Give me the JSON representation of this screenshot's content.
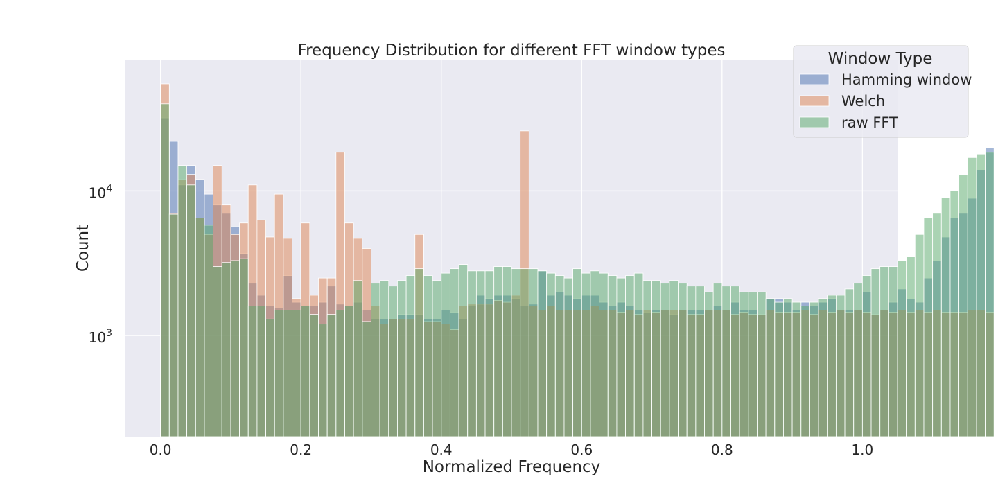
{
  "chart_data": {
    "type": "bar",
    "title": "Frequency Distribution for different FFT window types",
    "xlabel": "Normalized Frequency",
    "ylabel": "Count",
    "xlim": [
      -0.05,
      1.05
    ],
    "ylim": [
      200,
      80000
    ],
    "yscale": "log",
    "grid": true,
    "x_ticks": [
      "0.0",
      "0.2",
      "0.4",
      "0.6",
      "0.8",
      "1.0"
    ],
    "y_ticks": [
      {
        "base": "10",
        "exp": "3"
      },
      {
        "base": "10",
        "exp": "4"
      }
    ],
    "legend": {
      "title": "Window Type",
      "position": "top-right"
    },
    "bin_width": 0.0125,
    "x_start": 0.0,
    "series": [
      {
        "name": "Hamming window",
        "color": "#4c72b0",
        "values": [
          32000,
          22000,
          11000,
          15000,
          12000,
          9500,
          8000,
          7000,
          5700,
          3700,
          2300,
          1900,
          1600,
          1550,
          2600,
          1700,
          1600,
          1600,
          1700,
          2200,
          1650,
          1600,
          1700,
          1500,
          1300,
          1300,
          1300,
          1400,
          1400,
          1400,
          1300,
          1300,
          1500,
          1450,
          1300,
          1600,
          1900,
          1800,
          1900,
          1900,
          1800,
          1600,
          1650,
          2800,
          1900,
          2000,
          1900,
          1800,
          1900,
          1900,
          1700,
          1600,
          1700,
          1600,
          1500,
          1450,
          1500,
          1500,
          1400,
          1500,
          1500,
          1500,
          1500,
          1600,
          1500,
          1700,
          1500,
          1500,
          1400,
          1800,
          1800,
          1700,
          1500,
          1700,
          1600,
          1700,
          1800,
          1500,
          1500,
          1500,
          2000,
          1400,
          1500,
          1700,
          2100,
          1800,
          1700,
          2500,
          3300,
          4800,
          6500,
          7000,
          8900,
          14000,
          20000
        ]
      },
      {
        "name": "Welch",
        "color": "#dd8452",
        "values": [
          55000,
          7000,
          12000,
          13000,
          6500,
          5000,
          15000,
          8000,
          5000,
          6000,
          11000,
          6300,
          4800,
          9500,
          4700,
          1800,
          6000,
          1900,
          2500,
          2500,
          18500,
          6000,
          4700,
          4000,
          1600,
          1200,
          1300,
          1300,
          1300,
          5000,
          1250,
          1250,
          1200,
          1100,
          1600,
          1650,
          1650,
          1650,
          1750,
          1700,
          1900,
          26000,
          1600,
          1500,
          1600,
          1500,
          1500,
          1500,
          1500,
          1600,
          1500,
          1500,
          1450,
          1500,
          1400,
          1500,
          1450,
          1500,
          1500,
          1500,
          1400,
          1400,
          1500,
          1500,
          1500,
          1400,
          1450,
          1400,
          1400,
          1500,
          1450,
          1450,
          1450,
          1500,
          1400,
          1500,
          1450,
          1500,
          1450,
          1500,
          1450,
          1400,
          1500,
          1450,
          1500,
          1450,
          1500,
          1450,
          1500,
          1450,
          1450,
          1450,
          1500,
          1500,
          1450
        ]
      },
      {
        "name": "raw FFT",
        "color": "#55a868",
        "values": [
          40000,
          6900,
          15000,
          11000,
          6500,
          5800,
          3000,
          3200,
          3300,
          3400,
          1600,
          1600,
          1300,
          1500,
          1500,
          1500,
          1600,
          1400,
          1200,
          1400,
          1500,
          1600,
          2400,
          1250,
          2300,
          2400,
          2200,
          2400,
          2600,
          2900,
          2600,
          2400,
          2700,
          2900,
          3100,
          2800,
          2800,
          2800,
          3000,
          3000,
          2900,
          2900,
          2900,
          2800,
          2700,
          2600,
          2500,
          2900,
          2700,
          2800,
          2700,
          2600,
          2500,
          2600,
          2700,
          2400,
          2400,
          2300,
          2400,
          2300,
          2200,
          2200,
          2000,
          2300,
          2200,
          2200,
          2000,
          2000,
          2000,
          1800,
          1700,
          1800,
          1700,
          1600,
          1700,
          1800,
          1900,
          1900,
          2100,
          2300,
          2600,
          2900,
          3000,
          3000,
          3300,
          3500,
          5000,
          6500,
          7000,
          9000,
          10000,
          13000,
          17000,
          18000,
          18500
        ]
      }
    ]
  }
}
